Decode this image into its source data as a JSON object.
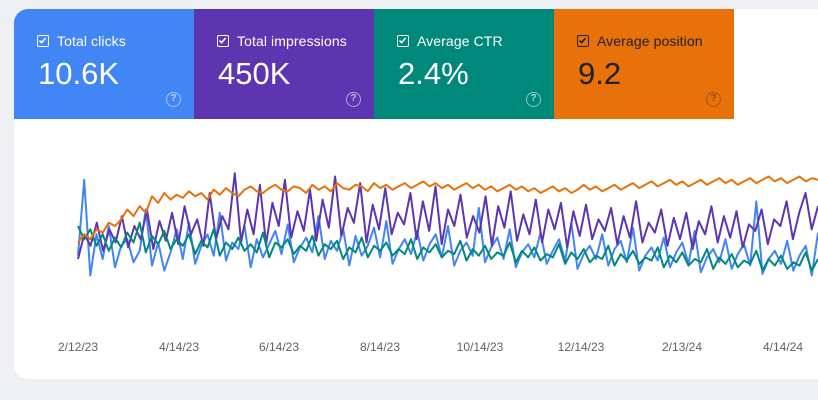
{
  "metrics": [
    {
      "label": "Total clicks",
      "value": "10.6K",
      "checked": true,
      "color": "#4285f4"
    },
    {
      "label": "Total impressions",
      "value": "450K",
      "checked": true,
      "color": "#5e35b1"
    },
    {
      "label": "Average CTR",
      "value": "2.4%",
      "checked": true,
      "color": "#00897b"
    },
    {
      "label": "Average position",
      "value": "9.2",
      "checked": true,
      "color": "#e8710a"
    }
  ],
  "help_icon_glyph": "?",
  "chart_data": {
    "type": "line",
    "x_tick_labels": [
      "2/12/23",
      "4/14/23",
      "6/14/23",
      "8/14/23",
      "10/14/23",
      "12/14/23",
      "2/13/24",
      "4/14/24"
    ],
    "y_axis": "hidden",
    "series": [
      {
        "name": "Total clicks",
        "color": "#4285f4",
        "values": [
          42,
          88,
          30,
          55,
          40,
          60,
          35,
          48,
          52,
          38,
          45,
          70,
          36,
          50,
          33,
          44,
          58,
          40,
          62,
          37,
          48,
          55,
          42,
          68,
          39,
          50,
          46,
          60,
          35,
          52,
          41,
          49,
          57,
          43,
          61,
          38,
          47,
          53,
          44,
          66,
          40,
          51,
          45,
          58,
          36,
          54,
          42,
          48,
          59,
          41,
          63,
          37,
          46,
          52,
          43,
          57,
          39,
          49,
          55,
          41,
          60,
          36,
          45,
          50,
          42,
          71,
          38,
          47,
          53,
          40,
          58,
          35,
          44,
          49,
          41,
          56,
          37,
          45,
          52,
          39,
          62,
          34,
          43,
          48,
          40,
          55,
          36,
          46,
          51,
          38,
          59,
          33,
          42,
          47,
          39,
          53,
          35,
          44,
          50,
          37,
          57,
          32,
          41,
          46,
          38,
          52,
          34,
          43,
          49,
          36,
          75,
          31,
          40,
          45,
          37,
          51,
          33,
          42,
          48,
          30,
          56
        ]
      },
      {
        "name": "Total impressions",
        "color": "#5e35b1",
        "values": [
          40,
          55,
          48,
          62,
          45,
          58,
          50,
          66,
          47,
          60,
          52,
          70,
          46,
          63,
          51,
          68,
          49,
          72,
          55,
          64,
          48,
          80,
          52,
          66,
          58,
          92,
          50,
          70,
          55,
          85,
          49,
          74,
          60,
          88,
          53,
          69,
          57,
          82,
          51,
          76,
          59,
          90,
          54,
          71,
          62,
          86,
          50,
          73,
          58,
          83,
          55,
          68,
          61,
          80,
          52,
          75,
          57,
          84,
          49,
          70,
          60,
          79,
          53,
          66,
          56,
          78,
          48,
          72,
          59,
          81,
          51,
          67,
          55,
          76,
          50,
          70,
          58,
          74,
          47,
          69,
          54,
          73,
          52,
          64,
          57,
          71,
          49,
          66,
          53,
          75,
          50,
          62,
          56,
          70,
          48,
          65,
          52,
          68,
          46,
          63,
          55,
          72,
          50,
          66,
          53,
          69,
          47,
          61,
          57,
          70,
          49,
          64,
          60,
          75,
          52,
          68,
          80,
          58,
          72
        ]
      },
      {
        "name": "Average CTR",
        "color": "#00897b",
        "values": [
          60,
          52,
          58,
          48,
          55,
          45,
          53,
          47,
          56,
          50,
          62,
          44,
          54,
          49,
          57,
          46,
          52,
          48,
          55,
          43,
          51,
          47,
          58,
          42,
          50,
          46,
          53,
          45,
          49,
          44,
          56,
          41,
          50,
          47,
          52,
          43,
          48,
          45,
          54,
          42,
          49,
          46,
          51,
          40,
          47,
          44,
          53,
          41,
          48,
          45,
          50,
          42,
          46,
          43,
          52,
          40,
          47,
          44,
          49,
          41,
          45,
          43,
          51,
          39,
          46,
          42,
          48,
          40,
          44,
          42,
          50,
          38,
          45,
          41,
          47,
          39,
          43,
          41,
          49,
          37,
          44,
          40,
          46,
          38,
          42,
          40,
          48,
          36,
          43,
          39,
          45,
          37,
          41,
          39,
          47,
          35,
          42,
          38,
          44,
          36,
          40,
          38,
          46,
          34,
          41,
          37,
          43,
          35,
          39,
          37,
          45,
          33,
          40,
          36,
          42,
          34,
          38,
          36,
          44,
          33,
          40
        ]
      },
      {
        "name": "Average position",
        "color": "#e8710a",
        "values": [
          50,
          55,
          52,
          58,
          56,
          62,
          60,
          64,
          70,
          66,
          72,
          68,
          78,
          74,
          80,
          76,
          79,
          77,
          81,
          78,
          80,
          76,
          82,
          79,
          83,
          80,
          78,
          82,
          84,
          81,
          80,
          83,
          85,
          82,
          81,
          84,
          83,
          80,
          85,
          82,
          84,
          81,
          86,
          83,
          82,
          85,
          84,
          81,
          86,
          83,
          85,
          82,
          84,
          86,
          83,
          85,
          87,
          84,
          86,
          83,
          85,
          82,
          84,
          86,
          83,
          85,
          82,
          84,
          81,
          83,
          85,
          82,
          84,
          81,
          83,
          80,
          82,
          84,
          81,
          83,
          80,
          82,
          85,
          82,
          84,
          81,
          83,
          85,
          82,
          84,
          86,
          83,
          85,
          87,
          84,
          86,
          88,
          85,
          87,
          84,
          86,
          88,
          85,
          87,
          89,
          86,
          88,
          85,
          87,
          89,
          86,
          88,
          90,
          87,
          89,
          86,
          88,
          90,
          87,
          89,
          88
        ]
      }
    ]
  }
}
